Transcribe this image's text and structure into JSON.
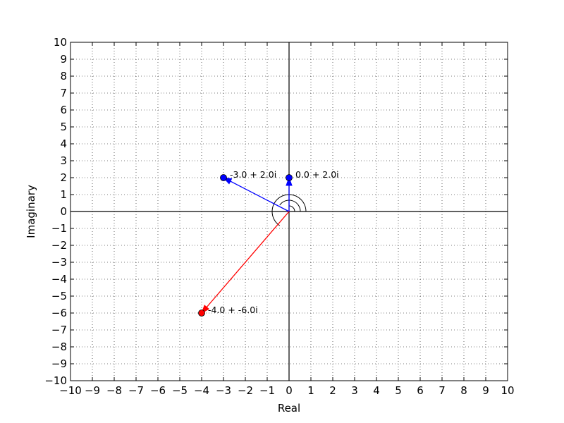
{
  "chart_data": {
    "type": "scatter",
    "title": "",
    "xlabel": "Real",
    "ylabel": "Imaginary",
    "xlim": [
      -10,
      10
    ],
    "ylim": [
      -10,
      10
    ],
    "x_ticks": [
      "−10",
      "−9",
      "−8",
      "−7",
      "−6",
      "−5",
      "−4",
      "−3",
      "−2",
      "−1",
      "0",
      "1",
      "2",
      "3",
      "4",
      "5",
      "6",
      "7",
      "8",
      "9",
      "10"
    ],
    "y_ticks": [
      "−10",
      "−9",
      "−8",
      "−7",
      "−6",
      "−5",
      "−4",
      "−3",
      "−2",
      "−1",
      "0",
      "1",
      "2",
      "3",
      "4",
      "5",
      "6",
      "7",
      "8",
      "9",
      "10"
    ],
    "grid": true,
    "grid_style": "dotted",
    "points": [
      {
        "x": 0,
        "y": 2,
        "label": "0.0 + 2.0i",
        "color": "#0000ff"
      },
      {
        "x": -3,
        "y": 2,
        "label": "-3.0 + 2.0i",
        "color": "#0000ff"
      },
      {
        "x": -4,
        "y": -6,
        "label": "-4.0 + -6.0i",
        "color": "#ff0000"
      }
    ]
  }
}
